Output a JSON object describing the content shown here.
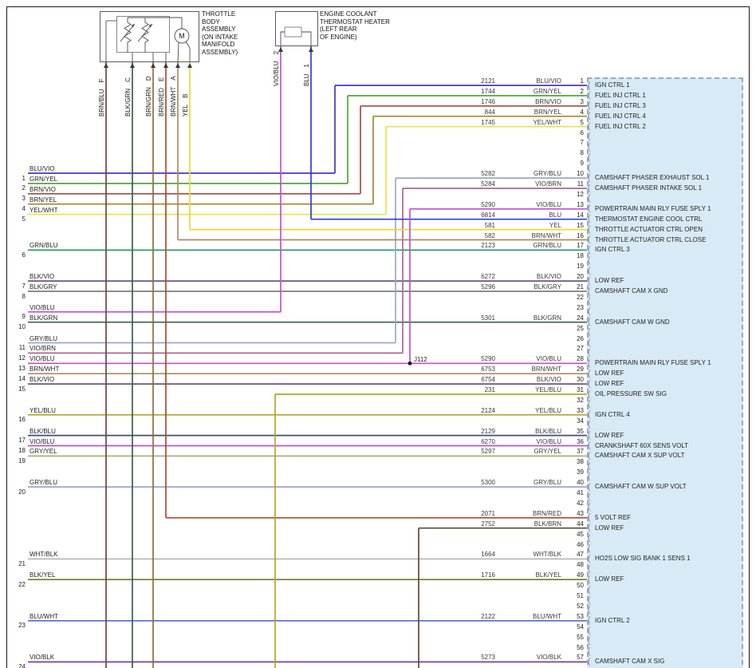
{
  "pin_symbol": "(",
  "junction_label": "J112",
  "throttle_body": {
    "caption_lines": [
      "THROTTLE",
      "BODY",
      "ASSEMBLY",
      "(ON INTAKE",
      "MANIFOLD",
      "ASSEMBLY)"
    ],
    "motor_label": "M",
    "pins": [
      {
        "pin": "F",
        "wire": "BRN/BLU"
      },
      {
        "pin": "C",
        "wire": "BLK/GRN"
      },
      {
        "pin": "D",
        "wire": "BRN/GRN"
      },
      {
        "pin": "E",
        "wire": "BRN/RED"
      },
      {
        "pin": "A",
        "wire": "BRN/WHT"
      },
      {
        "pin": "B",
        "wire": "YEL"
      }
    ]
  },
  "thermostat_heater": {
    "caption_lines": [
      "ENGINE COOLANT",
      "THERMOSTAT HEATER",
      "(LEFT REAR",
      "OF ENGINE)"
    ],
    "pins": [
      {
        "pin": "2",
        "wire": "VIO/BLU"
      },
      {
        "pin": "1",
        "wire": "BLU"
      }
    ]
  },
  "left_stubs": [
    {
      "num": "1",
      "wire": "BLU/VIO"
    },
    {
      "num": "2",
      "wire": "GRN/YEL"
    },
    {
      "num": "3",
      "wire": "BRN/VIO"
    },
    {
      "num": "4",
      "wire": "BRN/YEL"
    },
    {
      "num": "5",
      "wire": "YEL/WHT"
    },
    {
      "num": "6",
      "wire": "GRN/BLU"
    },
    {
      "num": "7",
      "wire": "BLK/VIO"
    },
    {
      "num": "8",
      "wire": "BLK/GRY"
    },
    {
      "num": "9",
      "wire": "VIO/BLU"
    },
    {
      "num": "10",
      "wire": "BLK/GRN"
    },
    {
      "num": "11",
      "wire": "GRY/BLU"
    },
    {
      "num": "12",
      "wire": "VIO/BRN"
    },
    {
      "num": "13",
      "wire": "VIO/BLU"
    },
    {
      "num": "14",
      "wire": "BRN/WHT"
    },
    {
      "num": "15",
      "wire": "BLK/VIO"
    },
    {
      "num": "16",
      "wire": "YEL/BLU"
    },
    {
      "num": "17",
      "wire": "BLK/BLU"
    },
    {
      "num": "18",
      "wire": "VIO/BLU"
    },
    {
      "num": "19",
      "wire": "GRY/YEL"
    },
    {
      "num": "20",
      "wire": "GRY/BLU"
    },
    {
      "num": "21",
      "wire": "WHT/BLK"
    },
    {
      "num": "22",
      "wire": "BLK/YEL"
    },
    {
      "num": "23",
      "wire": "BLU/WHT"
    },
    {
      "num": "24",
      "wire": "VIO/BLK"
    }
  ],
  "connector_rows": [
    {
      "pin": 1,
      "circuit": "2121",
      "wire": "BLU/VIO",
      "label": "IGN CTRL 1"
    },
    {
      "pin": 2,
      "circuit": "1744",
      "wire": "GRN/YEL",
      "label": "FUEL INJ CTRL 1"
    },
    {
      "pin": 3,
      "circuit": "1746",
      "wire": "BRN/VIO",
      "label": "FUEL INJ CTRL 3"
    },
    {
      "pin": 4,
      "circuit": "844",
      "wire": "BRN/YEL",
      "label": "FUEL INJ CTRL 4"
    },
    {
      "pin": 5,
      "circuit": "1745",
      "wire": "YEL/WHT",
      "label": "FUEL INJ CTRL 2"
    },
    {
      "pin": 6
    },
    {
      "pin": 7
    },
    {
      "pin": 8
    },
    {
      "pin": 9
    },
    {
      "pin": 10,
      "circuit": "5282",
      "wire": "GRY/BLU",
      "label": "CAMSHAFT PHASER EXHAUST SOL 1"
    },
    {
      "pin": 11,
      "circuit": "5284",
      "wire": "VIO/BRN",
      "label": "CAMSHAFT PHASER INTAKE SOL 1"
    },
    {
      "pin": 12
    },
    {
      "pin": 13,
      "circuit": "5290",
      "wire": "VIO/BLU",
      "label": "POWERTRAIN MAIN RLY FUSE SPLY 1"
    },
    {
      "pin": 14,
      "circuit": "6814",
      "wire": "BLU",
      "label": "THERMOSTAT ENGINE COOL CTRL"
    },
    {
      "pin": 15,
      "circuit": "581",
      "wire": "YEL",
      "label": "THROTTLE ACTUATOR CTRL OPEN"
    },
    {
      "pin": 16,
      "circuit": "582",
      "wire": "BRN/WHT",
      "label": "THROTTLE ACTUATOR CTRL CLOSE"
    },
    {
      "pin": 17,
      "circuit": "2123",
      "wire": "GRN/BLU",
      "label": "IGN CTRL 3"
    },
    {
      "pin": 18
    },
    {
      "pin": 19
    },
    {
      "pin": 20,
      "circuit": "6272",
      "wire": "BLK/VIO",
      "label": "LOW REF"
    },
    {
      "pin": 21,
      "circuit": "5296",
      "wire": "BLK/GRY",
      "label": "CAMSHAFT CAM X GND"
    },
    {
      "pin": 22
    },
    {
      "pin": 23
    },
    {
      "pin": 24,
      "circuit": "5301",
      "wire": "BLK/GRN",
      "label": "CAMSHAFT CAM W GND"
    },
    {
      "pin": 25
    },
    {
      "pin": 26
    },
    {
      "pin": 27
    },
    {
      "pin": 28,
      "circuit": "5290",
      "wire": "VIO/BLU",
      "label": "POWERTRAIN MAIN RLY FUSE SPLY 1"
    },
    {
      "pin": 29,
      "circuit": "6753",
      "wire": "BRN/WHT",
      "label": "LOW REF"
    },
    {
      "pin": 30,
      "circuit": "6754",
      "wire": "BLK/VIO",
      "label": "LOW REF"
    },
    {
      "pin": 31,
      "circuit": "231",
      "wire": "YEL/BLU",
      "label": "OIL PRESSURE SW SIG"
    },
    {
      "pin": 32
    },
    {
      "pin": 33,
      "circuit": "2124",
      "wire": "YEL/BLU",
      "label": "IGN CTRL 4"
    },
    {
      "pin": 34
    },
    {
      "pin": 35,
      "circuit": "2129",
      "wire": "BLK/BLU",
      "label": "LOW REF"
    },
    {
      "pin": 36,
      "circuit": "6270",
      "wire": "VIO/BLU",
      "label": "CRANKSHAFT 60X SENS VOLT"
    },
    {
      "pin": 37,
      "circuit": "5297",
      "wire": "GRY/YEL",
      "label": "CAMSHAFT CAM X SUP VOLT"
    },
    {
      "pin": 38
    },
    {
      "pin": 39
    },
    {
      "pin": 40,
      "circuit": "5300",
      "wire": "GRY/BLU",
      "label": "CAMSHAFT CAM W SUP VOLT"
    },
    {
      "pin": 41
    },
    {
      "pin": 42
    },
    {
      "pin": 43,
      "circuit": "2071",
      "wire": "BRN/RED",
      "label": "5 VOLT REF"
    },
    {
      "pin": 44,
      "circuit": "2752",
      "wire": "BLK/BRN",
      "label": "LOW REF"
    },
    {
      "pin": 45
    },
    {
      "pin": 46
    },
    {
      "pin": 47,
      "circuit": "1664",
      "wire": "WHT/BLK",
      "label": "HO2S LOW SIG BANK 1 SENS 1"
    },
    {
      "pin": 48
    },
    {
      "pin": 49,
      "circuit": "1716",
      "wire": "BLK/YEL",
      "label": "LOW REF"
    },
    {
      "pin": 50
    },
    {
      "pin": 51
    },
    {
      "pin": 52
    },
    {
      "pin": 53,
      "circuit": "2122",
      "wire": "BLU/WHT",
      "label": "IGN CTRL 2"
    },
    {
      "pin": 54
    },
    {
      "pin": 55
    },
    {
      "pin": 56
    },
    {
      "pin": 57,
      "circuit": "5273",
      "wire": "VIO/BLK",
      "label": "CAMSHAFT CAM X SIG"
    }
  ],
  "wire_colors": {
    "BLU/VIO": "#4b34c0",
    "GRN/YEL": "#4ea83a",
    "BRN/VIO": "#9c4f42",
    "BRN/YEL": "#a3862e",
    "YEL/WHT": "#e9e44c",
    "GRN/BLU": "#2f9b62",
    "BLK/VIO": "#6a5878",
    "BLK/GRY": "#7d7d7d",
    "VIO/BLU": "#c44fd0",
    "BLK/GRN": "#37614a",
    "GRY/BLU": "#9aa9c9",
    "VIO/BRN": "#a66a93",
    "BRN/WHT": "#b08a5c",
    "YEL/BLU": "#b5a625",
    "BLK/BLU": "#3f4c74",
    "GRY/YEL": "#b5ad76",
    "WHT/BLK": "#b9b9b9",
    "BLK/YEL": "#77762f",
    "BLU/WHT": "#4d6cd9",
    "VIO/BLK": "#7e3fa0",
    "BLU": "#2b3fd4",
    "YEL": "#e7dd2e",
    "BRN/RED": "#ad4a30",
    "BLK/BRN": "#5d4a33",
    "BRN/BLU": "#6b4640",
    "BRN/GRN": "#8a713c"
  }
}
